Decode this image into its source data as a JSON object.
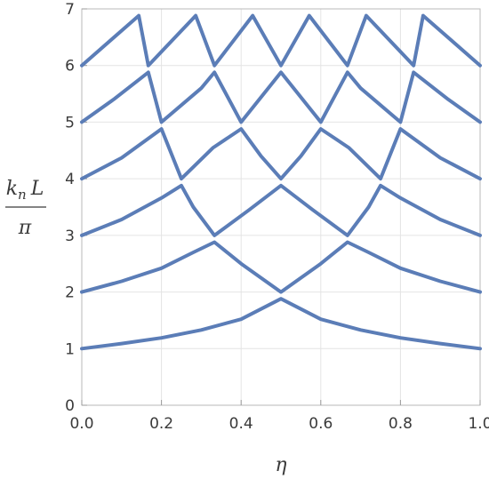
{
  "chart_data": {
    "type": "line",
    "title": "",
    "xlabel": "η",
    "ylabel": {
      "k": "k",
      "sub": "n",
      "L": "L",
      "denominator": "π"
    },
    "xlim": [
      0,
      1
    ],
    "ylim": [
      0,
      7
    ],
    "x_ticks": [
      "0.0",
      "0.2",
      "0.4",
      "0.6",
      "0.8",
      "1.0"
    ],
    "y_ticks": [
      "0",
      "1",
      "2",
      "3",
      "4",
      "5",
      "6",
      "7"
    ],
    "grid": true,
    "line_color": "#5B7DB7",
    "series": [
      {
        "x": [
          0.0,
          0.1,
          0.2,
          0.3,
          0.4,
          0.5,
          0.6,
          0.7,
          0.8,
          0.9,
          1.0
        ],
        "y": [
          1.0,
          1.09,
          1.19,
          1.33,
          1.52,
          1.88,
          1.52,
          1.33,
          1.19,
          1.09,
          1.0
        ]
      },
      {
        "x": [
          0.0,
          0.1,
          0.2,
          0.28,
          0.333,
          0.4,
          0.5,
          0.6,
          0.667,
          0.72,
          0.8,
          0.9,
          1.0
        ],
        "y": [
          2.0,
          2.19,
          2.42,
          2.7,
          2.88,
          2.5,
          2.0,
          2.5,
          2.88,
          2.7,
          2.42,
          2.19,
          2.0
        ]
      },
      {
        "x": [
          0.0,
          0.1,
          0.2,
          0.25,
          0.28,
          0.333,
          0.42,
          0.5,
          0.58,
          0.667,
          0.72,
          0.75,
          0.8,
          0.9,
          1.0
        ],
        "y": [
          3.0,
          3.28,
          3.66,
          3.88,
          3.5,
          3.0,
          3.45,
          3.88,
          3.45,
          3.0,
          3.5,
          3.88,
          3.66,
          3.28,
          3.0
        ]
      },
      {
        "x": [
          0.0,
          0.1,
          0.2,
          0.25,
          0.33,
          0.4,
          0.45,
          0.5,
          0.55,
          0.6,
          0.67,
          0.75,
          0.8,
          0.9,
          1.0
        ],
        "y": [
          4.0,
          4.37,
          4.88,
          4.0,
          4.55,
          4.88,
          4.4,
          4.0,
          4.4,
          4.88,
          4.55,
          4.0,
          4.88,
          4.37,
          4.0
        ]
      },
      {
        "x": [
          0.0,
          0.08,
          0.167,
          0.2,
          0.3,
          0.333,
          0.4,
          0.5,
          0.6,
          0.667,
          0.7,
          0.8,
          0.833,
          0.92,
          1.0
        ],
        "y": [
          5.0,
          5.4,
          5.88,
          5.0,
          5.6,
          5.88,
          5.0,
          5.88,
          5.0,
          5.88,
          5.6,
          5.0,
          5.88,
          5.4,
          5.0
        ]
      },
      {
        "x": [
          0.0,
          0.143,
          0.167,
          0.286,
          0.333,
          0.429,
          0.5,
          0.571,
          0.667,
          0.714,
          0.833,
          0.857,
          1.0
        ],
        "y": [
          6.0,
          6.88,
          6.0,
          6.88,
          6.0,
          6.88,
          6.0,
          6.88,
          6.0,
          6.88,
          6.0,
          6.88,
          6.0
        ]
      }
    ]
  }
}
